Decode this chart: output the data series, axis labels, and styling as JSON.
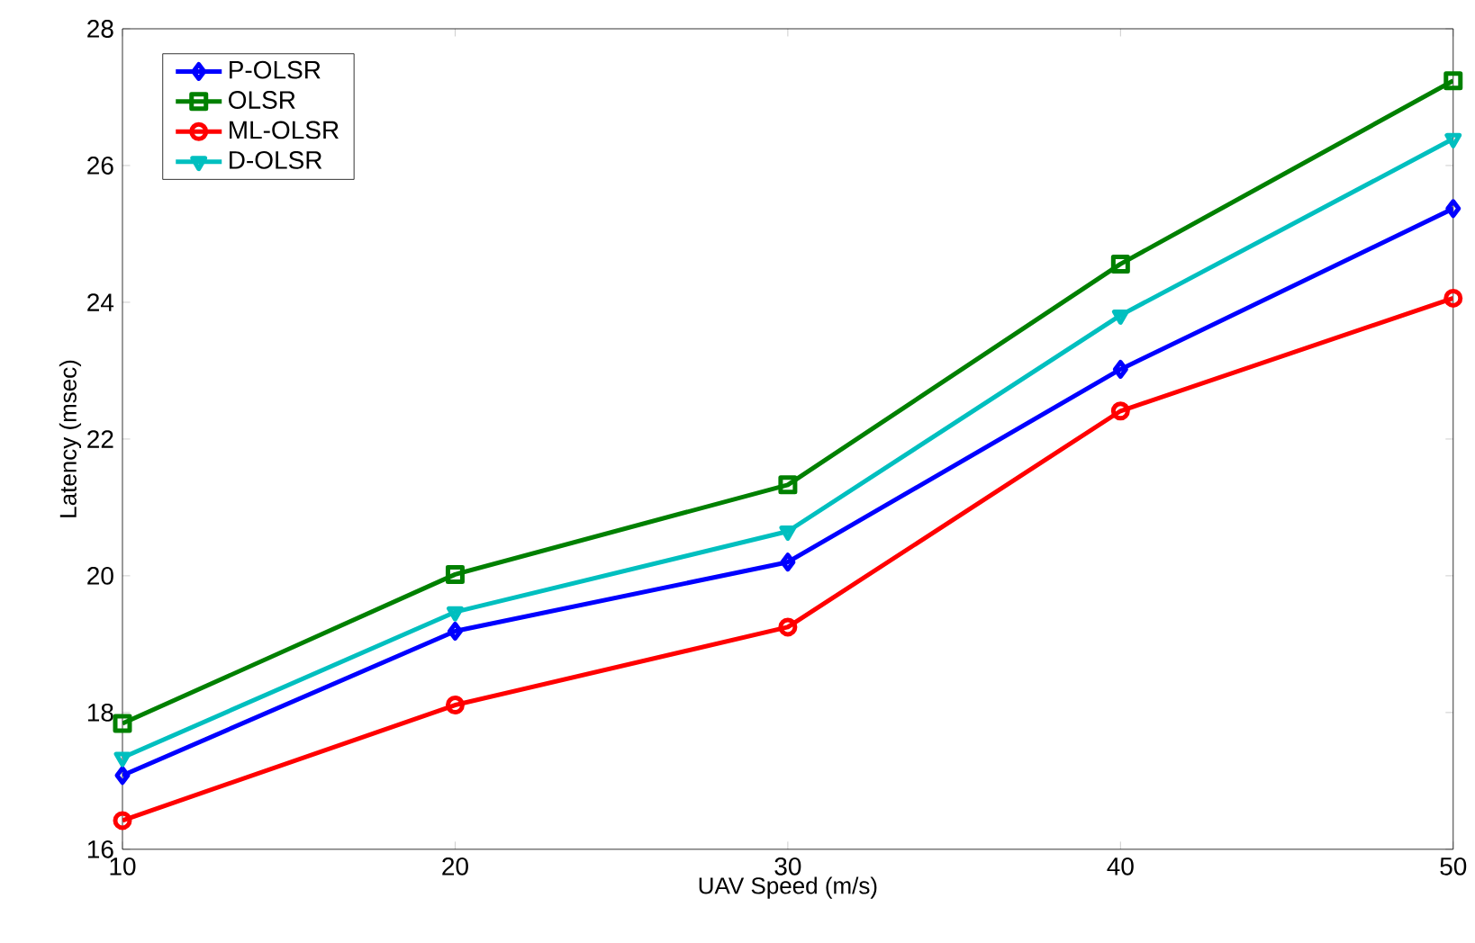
{
  "chart_data": {
    "type": "line",
    "xlabel": "UAV Speed (m/s)",
    "ylabel": "Latency (msec)",
    "x": [
      10,
      20,
      30,
      40,
      50
    ],
    "series": [
      {
        "name": "P-OLSR",
        "color": "#0000ff",
        "marker": "diamond",
        "values": [
          17.08,
          19.19,
          20.2,
          23.02,
          25.37
        ]
      },
      {
        "name": "OLSR",
        "color": "#008000",
        "marker": "square",
        "values": [
          17.84,
          20.02,
          21.33,
          24.56,
          27.24
        ]
      },
      {
        "name": "ML-OLSR",
        "color": "#ff0000",
        "marker": "circle",
        "values": [
          16.42,
          18.11,
          19.25,
          22.41,
          24.06
        ]
      },
      {
        "name": "D-OLSR",
        "color": "#00bfbf",
        "marker": "triangle",
        "values": [
          17.34,
          19.47,
          20.65,
          23.81,
          26.39
        ]
      }
    ],
    "xlim": [
      10,
      50
    ],
    "ylim": [
      16,
      28
    ],
    "xticks": [
      10,
      20,
      30,
      40,
      50
    ],
    "yticks": [
      16,
      18,
      20,
      22,
      24,
      26,
      28
    ],
    "grid": false,
    "legend": "top left",
    "line_style": "solid"
  }
}
